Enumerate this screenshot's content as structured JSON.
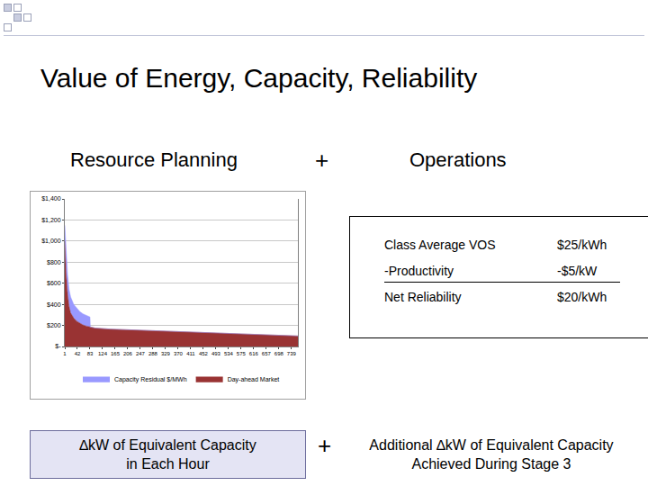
{
  "slide": {
    "title": "Value of Energy, Capacity, Reliability",
    "left_heading": "Resource Planning",
    "plus": "+",
    "right_heading": "Operations",
    "table": {
      "rows": [
        [
          "Class Average VOS",
          "$25/kWh"
        ],
        [
          "-Productivity",
          "-$5/kW"
        ],
        [
          "Net Reliability",
          "$20/kWh"
        ]
      ]
    },
    "footer_left": [
      "∆kW of Equivalent Capacity",
      "in Each Hour"
    ],
    "footer_plus": "+",
    "footer_right": [
      "Additional ∆kW of Equivalent Capacity",
      "Achieved During Stage 3"
    ]
  },
  "chart_data": {
    "type": "area",
    "stacked": true,
    "x": [
      1,
      5,
      10,
      15,
      20,
      30,
      40,
      50,
      60,
      70,
      83,
      84,
      100,
      150,
      200,
      300,
      400,
      500,
      600,
      700,
      760
    ],
    "series": [
      {
        "name": "Day-ahead Market",
        "color": "#993333",
        "values": [
          1000,
          700,
          500,
          380,
          320,
          270,
          240,
          220,
          205,
          195,
          185,
          185,
          175,
          165,
          160,
          150,
          140,
          130,
          120,
          110,
          100
        ]
      },
      {
        "name": "Capacity Residual $/MWh",
        "color": "#9999ff",
        "values": [
          150,
          200,
          180,
          160,
          150,
          130,
          120,
          110,
          105,
          100,
          95,
          0,
          0,
          0,
          0,
          0,
          0,
          0,
          0,
          0,
          0
        ]
      }
    ],
    "xlim": [
      1,
      760
    ],
    "xticks": [
      1,
      42,
      83,
      124,
      165,
      206,
      247,
      288,
      329,
      370,
      411,
      452,
      493,
      534,
      575,
      616,
      657,
      698,
      739
    ],
    "ylim": [
      0,
      1400
    ],
    "yticks": [
      {
        "value": 0,
        "label": "$-"
      },
      {
        "value": 200,
        "label": "$200"
      },
      {
        "value": 400,
        "label": "$400"
      },
      {
        "value": 600,
        "label": "$600"
      },
      {
        "value": 800,
        "label": "$800"
      },
      {
        "value": 1000,
        "label": "$1,000"
      },
      {
        "value": 1200,
        "label": "$1,200"
      },
      {
        "value": 1400,
        "label": "$1,400"
      }
    ],
    "grid": true,
    "legend": "bottom"
  }
}
